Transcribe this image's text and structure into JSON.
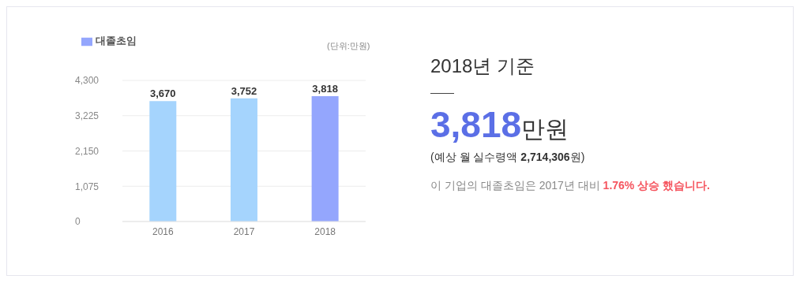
{
  "chart_data": {
    "type": "bar",
    "categories": [
      "2016",
      "2017",
      "2018"
    ],
    "series": [
      {
        "name": "대졸초임",
        "color": "#94a6fd",
        "colors": [
          "#a5d4fd",
          "#a5d4fd",
          "#94a6fd"
        ],
        "values": [
          3670,
          3752,
          3818
        ],
        "value_labels": [
          "3,670",
          "3,752",
          "3,818"
        ]
      }
    ],
    "ylim": [
      0,
      4300
    ],
    "yticks": [
      0,
      {
        "value": 1075,
        "label": "1,075"
      },
      {
        "value": 2150,
        "label": "2,150"
      },
      {
        "value": 3225,
        "label": "3,225"
      },
      {
        "value": 4300,
        "label": "4,300"
      }
    ],
    "grid": "y",
    "legend": "top left",
    "annotations": [
      "(단위:만원)",
      "2018년 기준",
      "3,818",
      "만원",
      "(예상 월 실수령액",
      "2,714,306",
      "원)",
      "이 기업의 대졸초임은 2017년 대비",
      "1.76% 상승 했습니다."
    ]
  }
}
